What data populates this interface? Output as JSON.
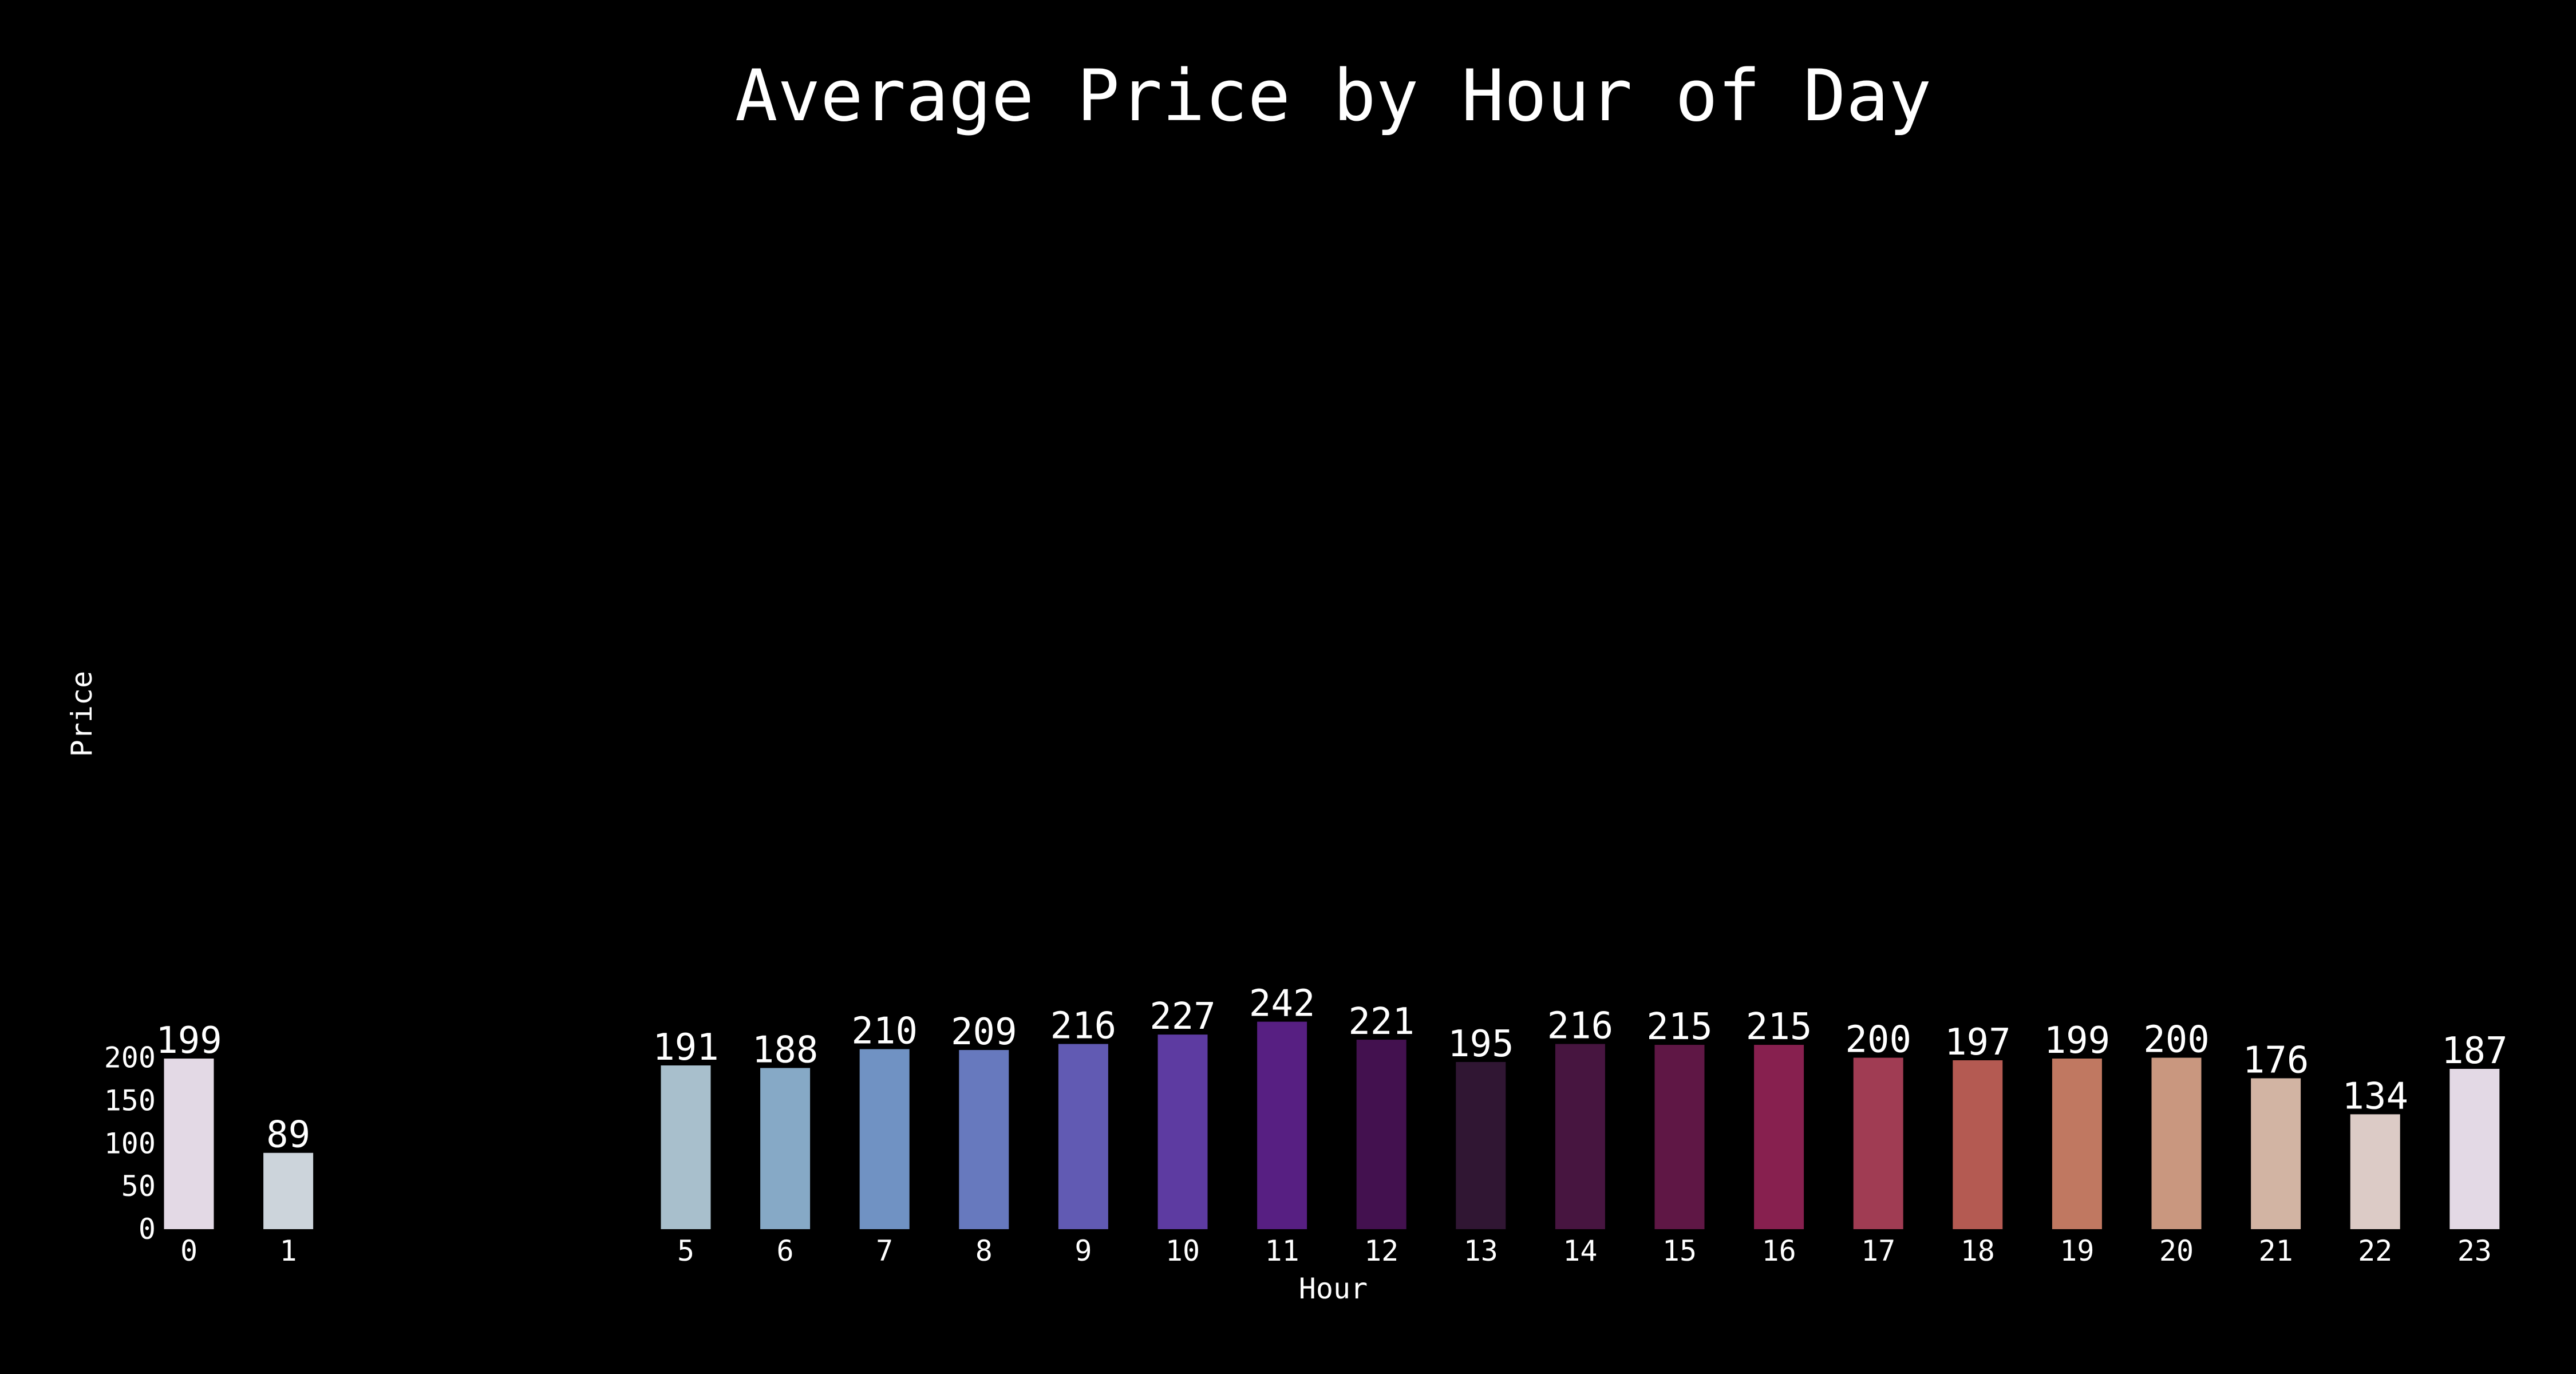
{
  "chart_data": {
    "type": "bar",
    "title": "Average Price by Hour of Day",
    "xlabel": "Hour",
    "ylabel": "Price",
    "ylim": [
      0,
      250
    ],
    "yticks": [
      0,
      50,
      100,
      150,
      200
    ],
    "x_domain": [
      0,
      23
    ],
    "grid": false,
    "background": "#000000",
    "text_color": "#ffffff",
    "categories": [
      "0",
      "1",
      "5",
      "6",
      "7",
      "8",
      "9",
      "10",
      "11",
      "12",
      "13",
      "14",
      "15",
      "16",
      "17",
      "18",
      "19",
      "20",
      "21",
      "22",
      "23"
    ],
    "values": [
      199,
      89,
      191,
      188,
      210,
      209,
      216,
      227,
      242,
      221,
      195,
      216,
      215,
      215,
      200,
      197,
      199,
      200,
      176,
      134,
      187
    ],
    "colors": [
      "#e3d9e5",
      "#ccd4db",
      "#a8bfcc",
      "#86a9c6",
      "#7092c3",
      "#6779be",
      "#615ab3",
      "#5d3ba1",
      "#571f82",
      "#43114f",
      "#301633",
      "#471540",
      "#5f1745",
      "#87204f",
      "#a03c53",
      "#b45a52",
      "#c07861",
      "#c9977f",
      "#d2b4a3",
      "#dccbc6",
      "#e3d9e5"
    ]
  }
}
